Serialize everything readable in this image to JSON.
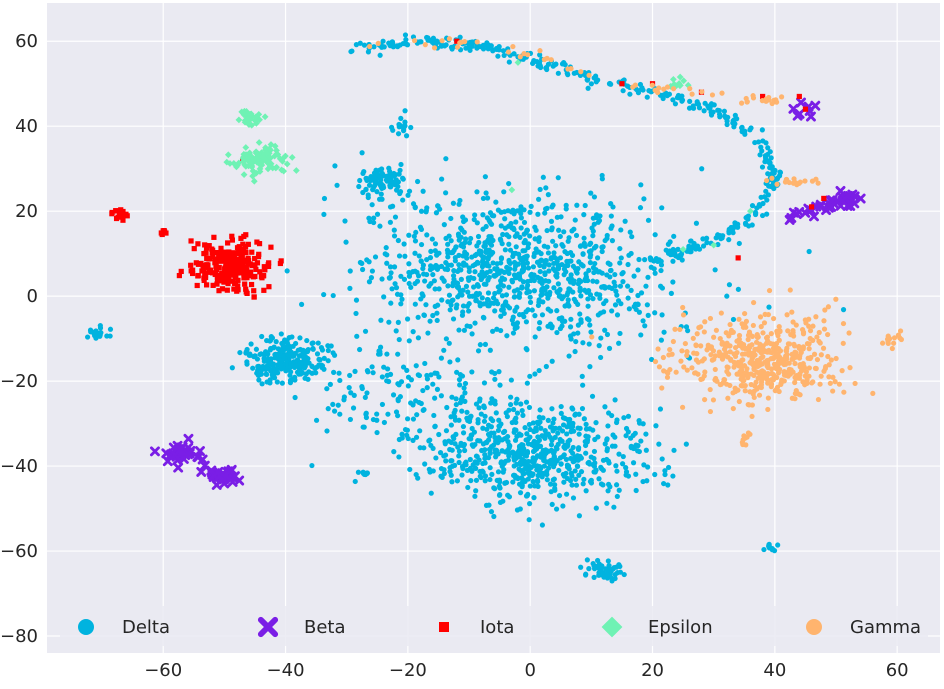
{
  "chart_data": {
    "type": "scatter",
    "title": "",
    "xlabel": "",
    "ylabel": "",
    "xlim": [
      -79,
      67
    ],
    "ylim": [
      -84,
      69
    ],
    "xticks": [
      -60,
      -40,
      -20,
      0,
      20,
      40,
      60
    ],
    "yticks": [
      60,
      40,
      20,
      0,
      -20,
      -40,
      -60,
      -80
    ],
    "xtick_labels": [
      "−60",
      "−40",
      "−20",
      "0",
      "20",
      "40",
      "60"
    ],
    "ytick_labels": [
      "60",
      "40",
      "20",
      "0",
      "−20",
      "−40",
      "−60",
      "−80"
    ],
    "grid": true,
    "legend": {
      "placement": "bottom",
      "columns": 5
    },
    "series": [
      {
        "name": "Delta",
        "marker": "circle",
        "color": "#00b3df",
        "clusters": [
          {
            "cx": -2,
            "cy": 6,
            "sx": 13,
            "sy": 9,
            "n": 950
          },
          {
            "cx": 1,
            "cy": -37,
            "sx": 9,
            "sy": 6,
            "n": 650
          },
          {
            "cx": -40,
            "cy": -15,
            "sx": 3.2,
            "sy": 2.5,
            "n": 260
          },
          {
            "cx": -24,
            "cy": 27,
            "sx": 2.2,
            "sy": 1.8,
            "n": 90
          },
          {
            "cx": -20,
            "cy": -22,
            "sx": 9,
            "sy": 7,
            "n": 160
          },
          {
            "cx": 12,
            "cy": -65,
            "sx": 1.8,
            "sy": 1.2,
            "n": 50
          },
          {
            "cx": -71,
            "cy": -9,
            "sx": 1.2,
            "sy": 0.8,
            "n": 20
          },
          {
            "cx": -21,
            "cy": 40,
            "sx": 0.8,
            "sy": 1.2,
            "n": 14
          },
          {
            "cx": 39.5,
            "cy": -59,
            "sx": 0.8,
            "sy": 0.6,
            "n": 10
          },
          {
            "cx": -27,
            "cy": -42,
            "sx": 0.7,
            "sy": 0.7,
            "n": 8
          }
        ],
        "path": [
          [
            -30,
            58
          ],
          [
            -17,
            60
          ],
          [
            -8,
            59
          ],
          [
            2,
            55
          ],
          [
            10,
            51
          ],
          [
            20,
            48
          ],
          [
            30,
            44
          ],
          [
            38,
            36
          ],
          [
            40,
            27
          ],
          [
            36,
            18
          ],
          [
            28,
            12
          ],
          [
            20,
            8
          ]
        ],
        "path_n": 380
      },
      {
        "name": "Beta",
        "marker": "x",
        "color": "#7a1ee6",
        "clusters": [
          {
            "cx": -57,
            "cy": -37,
            "sx": 1.6,
            "sy": 1.2,
            "n": 32
          },
          {
            "cx": -50,
            "cy": -42,
            "sx": 1.4,
            "sy": 1.0,
            "n": 28
          },
          {
            "cx": 52,
            "cy": 23,
            "sx": 1.0,
            "sy": 0.8,
            "n": 14
          },
          {
            "cx": 45,
            "cy": 44,
            "sx": 0.8,
            "sy": 0.8,
            "n": 8
          }
        ],
        "path": [
          [
            42,
            19
          ],
          [
            47,
            21
          ],
          [
            52,
            23
          ]
        ],
        "path_n": 24
      },
      {
        "name": "Iota",
        "marker": "square",
        "color": "#ff0000",
        "clusters": [
          {
            "cx": -49,
            "cy": 7,
            "sx": 3.2,
            "sy": 3.0,
            "n": 260
          },
          {
            "cx": -67,
            "cy": 19,
            "sx": 0.8,
            "sy": 0.6,
            "n": 14
          },
          {
            "cx": -60,
            "cy": 15,
            "sx": 0.4,
            "sy": 0.3,
            "n": 6
          }
        ],
        "scatter_points": [
          [
            -47,
            32
          ],
          [
            34,
            9
          ],
          [
            15,
            50
          ],
          [
            20,
            50
          ],
          [
            44,
            47
          ],
          [
            -12,
            60
          ],
          [
            28,
            48
          ],
          [
            45,
            44
          ],
          [
            38,
            47
          ],
          [
            46,
            21
          ],
          [
            48,
            23
          ]
        ]
      },
      {
        "name": "Epsilon",
        "marker": "diamond",
        "color": "#6ff2b4",
        "clusters": [
          {
            "cx": -44,
            "cy": 32,
            "sx": 2.0,
            "sy": 1.6,
            "n": 110
          },
          {
            "cx": -46,
            "cy": 42,
            "sx": 1.0,
            "sy": 0.9,
            "n": 35
          },
          {
            "cx": 24,
            "cy": 50,
            "sx": 1.0,
            "sy": 0.6,
            "n": 12
          }
        ],
        "scatter_points": [
          [
            -3,
            25
          ],
          [
            30,
            12
          ],
          [
            25,
            11
          ],
          [
            36,
            20
          ],
          [
            -2,
            55
          ]
        ]
      },
      {
        "name": "Gamma",
        "marker": "circle",
        "color": "#ffb46e",
        "clusters": [
          {
            "cx": 37,
            "cy": -15,
            "sx": 6.5,
            "sy": 5.0,
            "n": 500
          },
          {
            "cx": 59,
            "cy": -10,
            "sx": 1.0,
            "sy": 1.0,
            "n": 14
          },
          {
            "cx": 35,
            "cy": -34,
            "sx": 0.6,
            "sy": 0.6,
            "n": 8
          },
          {
            "cx": 44,
            "cy": 27,
            "sx": 2.0,
            "sy": 0.5,
            "n": 18
          }
        ],
        "path": [
          [
            -28,
            59
          ],
          [
            -12,
            60
          ],
          [
            0,
            57
          ],
          [
            14,
            51
          ],
          [
            24,
            48
          ],
          [
            36,
            46
          ],
          [
            41,
            46
          ]
        ],
        "path_n": 55
      }
    ]
  }
}
